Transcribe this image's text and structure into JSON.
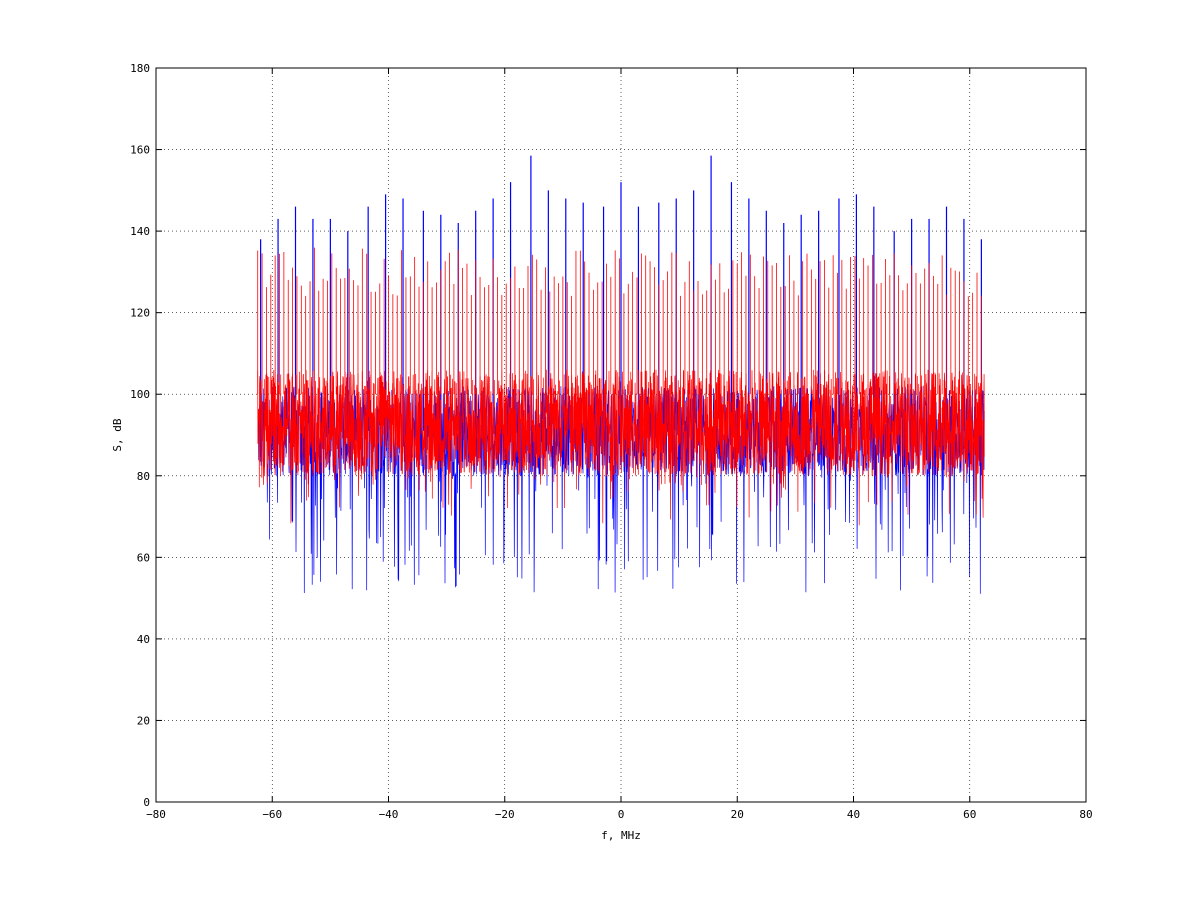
{
  "chart_data": {
    "type": "line",
    "title": "",
    "xlabel": "f, MHz",
    "ylabel": "S, dB",
    "xlim": [
      -80,
      80
    ],
    "ylim": [
      0,
      180
    ],
    "xticks": [
      -80,
      -60,
      -40,
      -20,
      0,
      20,
      40,
      60,
      80
    ],
    "yticks": [
      0,
      20,
      40,
      60,
      80,
      100,
      120,
      140,
      160,
      180
    ],
    "grid": true,
    "grid_style": "dotted",
    "background_color": "#ffffff",
    "series": [
      {
        "color": "#0000ff",
        "x_range": [
          -62.5,
          62.5
        ],
        "baseline_mean": 91,
        "floor_min": 45,
        "peak_max": 158.5,
        "peaks": [
          {
            "x": -62,
            "y": 138
          },
          {
            "x": -59,
            "y": 143
          },
          {
            "x": -56,
            "y": 146
          },
          {
            "x": -53,
            "y": 143
          },
          {
            "x": -50,
            "y": 143
          },
          {
            "x": -47,
            "y": 140
          },
          {
            "x": -43.5,
            "y": 146
          },
          {
            "x": -40.5,
            "y": 149
          },
          {
            "x": -37.5,
            "y": 148
          },
          {
            "x": -34,
            "y": 145
          },
          {
            "x": -31,
            "y": 144
          },
          {
            "x": -28,
            "y": 142
          },
          {
            "x": -25,
            "y": 145
          },
          {
            "x": -22,
            "y": 148
          },
          {
            "x": -19,
            "y": 152
          },
          {
            "x": -15.5,
            "y": 158.5
          },
          {
            "x": -12.5,
            "y": 150
          },
          {
            "x": -9.5,
            "y": 148
          },
          {
            "x": -6.5,
            "y": 147
          },
          {
            "x": -3,
            "y": 146
          },
          {
            "x": 0,
            "y": 152
          },
          {
            "x": 3,
            "y": 146
          },
          {
            "x": 6.5,
            "y": 147
          },
          {
            "x": 9.5,
            "y": 148
          },
          {
            "x": 12.5,
            "y": 150
          },
          {
            "x": 15.5,
            "y": 158.5
          },
          {
            "x": 19,
            "y": 152
          },
          {
            "x": 22,
            "y": 148
          },
          {
            "x": 25,
            "y": 145
          },
          {
            "x": 28,
            "y": 142
          },
          {
            "x": 31,
            "y": 144
          },
          {
            "x": 34,
            "y": 145
          },
          {
            "x": 37.5,
            "y": 148
          },
          {
            "x": 40.5,
            "y": 149
          },
          {
            "x": 43.5,
            "y": 146
          },
          {
            "x": 47,
            "y": 140
          },
          {
            "x": 50,
            "y": 143
          },
          {
            "x": 53,
            "y": 143
          },
          {
            "x": 56,
            "y": 146
          },
          {
            "x": 59,
            "y": 143
          },
          {
            "x": 62,
            "y": 138
          }
        ]
      },
      {
        "color": "#ff0000",
        "x_range": [
          -62.5,
          62.5
        ],
        "band_low": 80,
        "band_high": 106,
        "comb_spacing": 0.75,
        "comb_peak_range": [
          124,
          136
        ]
      }
    ]
  }
}
